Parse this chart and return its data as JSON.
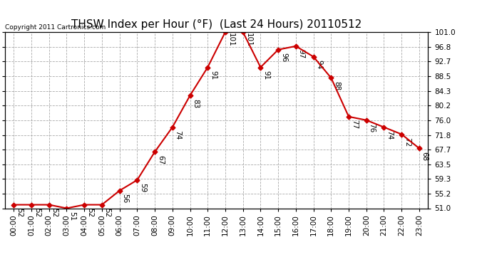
{
  "title": "THSW Index per Hour (°F)  (Last 24 Hours) 20110512",
  "copyright": "Copyright 2011 Cartronics.com",
  "hours": [
    "00:00",
    "01:00",
    "02:00",
    "03:00",
    "04:00",
    "05:00",
    "06:00",
    "07:00",
    "08:00",
    "09:00",
    "10:00",
    "11:00",
    "12:00",
    "13:00",
    "14:00",
    "15:00",
    "16:00",
    "17:00",
    "18:00",
    "19:00",
    "20:00",
    "21:00",
    "22:00",
    "23:00"
  ],
  "values": [
    52,
    52,
    52,
    51,
    52,
    52,
    56,
    59,
    67,
    74,
    83,
    91,
    101,
    101,
    91,
    96,
    97,
    94,
    88,
    77,
    76,
    74,
    72,
    68
  ],
  "ylim_min": 51.0,
  "ylim_max": 101.0,
  "yticks": [
    51.0,
    55.2,
    59.3,
    63.5,
    67.7,
    71.8,
    76.0,
    80.2,
    84.3,
    88.5,
    92.7,
    96.8,
    101.0
  ],
  "line_color": "#cc0000",
  "marker_color": "#cc0000",
  "bg_color": "#ffffff",
  "grid_color": "#aaaaaa",
  "title_fontsize": 11,
  "tick_fontsize": 7.5,
  "annotation_fontsize": 7.5,
  "copyright_fontsize": 6.5
}
